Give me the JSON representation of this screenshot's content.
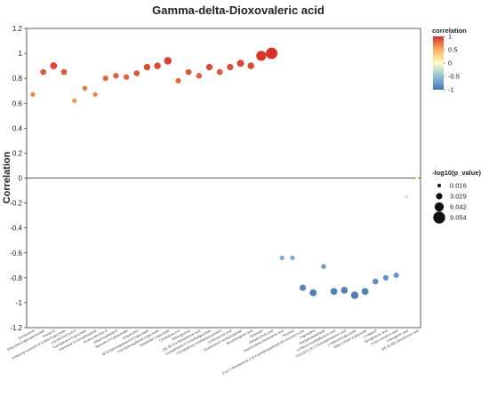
{
  "chart_data": {
    "type": "scatter",
    "title": "Gamma-delta-Dioxovaleric acid",
    "ylabel": "Correlation",
    "xlabel": "",
    "ylim": [
      -1.2,
      1.2
    ],
    "yticks": [
      -1.2,
      -1,
      -0.8,
      -0.6,
      -0.4,
      -0.2,
      0,
      0.2,
      0.4,
      0.6,
      0.8,
      1,
      1.2
    ],
    "grid": false,
    "reference_line_y": 0,
    "color_legend": {
      "title": "correlation",
      "ticks": [
        1,
        0.5,
        0,
        -0.5,
        -1
      ],
      "colors": [
        "#d73027",
        "#fee08b",
        "#fefdbf",
        "#91bfdb",
        "#4575b4"
      ]
    },
    "size_legend": {
      "title": "-log10(p_value)",
      "entries": [
        {
          "label": "0.016",
          "value": 0.016
        },
        {
          "label": "3.029",
          "value": 3.029
        },
        {
          "label": "6.042",
          "value": 6.042
        },
        {
          "label": "9.054",
          "value": 9.054
        }
      ]
    },
    "points": [
      {
        "label": "Sumatrolone",
        "y": 0.67,
        "p": 1.2
      },
      {
        "label": "Ethyl beta-D-glucopyranoside",
        "y": 0.85,
        "p": 2.5
      },
      {
        "label": "Fucose-E",
        "y": 0.9,
        "p": 3.8
      },
      {
        "label": "6-Hydroxy-coumarin 6-O-beta-D-glucoside",
        "y": 0.85,
        "p": 2.6
      },
      {
        "label": "(7S,8S)-DHCA-8-O",
        "y": 0.62,
        "p": 1.0
      },
      {
        "label": "Kaempferol 3-O-glucoside",
        "y": 0.72,
        "p": 1.5
      },
      {
        "label": "Adenosine 3'-monophosphate",
        "y": 0.67,
        "p": 1.2
      },
      {
        "label": "Proteocatechuic-8",
        "y": 0.8,
        "p": 2.1
      },
      {
        "label": "Dihydroxyphenyl-8",
        "y": 0.82,
        "p": 2.3
      },
      {
        "label": "Myricetin 3-O-galactoside",
        "y": 0.81,
        "p": 2.2
      },
      {
        "label": "Isoquercitrin",
        "y": 0.84,
        "p": 2.5
      },
      {
        "label": "6Z-6-Hydroxyguaiacol-8-O-glucoside",
        "y": 0.89,
        "p": 3.2
      },
      {
        "label": "4-(3-Hydroxyphenyl)-2-glucoside",
        "y": 0.9,
        "p": 3.4
      },
      {
        "label": "Delphinidin 3-glucoside",
        "y": 0.94,
        "p": 4.3
      },
      {
        "label": "Cholestane-3-ol",
        "y": 0.78,
        "p": 2.0
      },
      {
        "label": "Phloroglucinol",
        "y": 0.85,
        "p": 2.5
      },
      {
        "label": "(2E,4E)-2,4-Pentadienoic acid",
        "y": 0.82,
        "p": 2.3
      },
      {
        "label": "Lactophloretin 4'-O-methylglucoside",
        "y": 0.89,
        "p": 3.2
      },
      {
        "label": "7,8-Dihydroxy-3-methylisocoumarin",
        "y": 0.85,
        "p": 2.6
      },
      {
        "label": "11-Eicosenoic acid",
        "y": 0.89,
        "p": 3.2
      },
      {
        "label": "Guanosine-5'-monophosphate",
        "y": 0.92,
        "p": 3.8
      },
      {
        "label": "Neochlorogenic acid",
        "y": 0.9,
        "p": 3.4
      },
      {
        "label": "Diosmetin",
        "y": 0.98,
        "p": 7.0
      },
      {
        "label": "Dehydrocholic acid",
        "y": 1.0,
        "p": 8.6
      },
      {
        "label": "Gamma-delta-Dioxovaleric acid",
        "y": -0.64,
        "p": 1.2
      },
      {
        "label": "Hirsutine",
        "y": -0.64,
        "p": 1.2
      },
      {
        "label": "3,4,5,7-Tetrahydroxy-2-(3,4-dimethoxyphenyl)-4H-chromen-4-one",
        "y": -0.88,
        "p": 3.0
      },
      {
        "label": "Trigonelline",
        "y": -0.92,
        "p": 3.8
      },
      {
        "label": "Phenylacetaldehyde",
        "y": -0.71,
        "p": 1.5
      },
      {
        "label": "2-Chloro-4-methylbenzoic acid",
        "y": -0.91,
        "p": 3.6
      },
      {
        "label": "Cis-5,8,11,14,17-Eicosapentaenoic acid",
        "y": -0.9,
        "p": 3.5
      },
      {
        "label": "1-Sulfo-beta-glucoside",
        "y": -0.94,
        "p": 4.3
      },
      {
        "label": "Ethyl 2-(indol-3-yl)acetate",
        "y": -0.91,
        "p": 3.6
      },
      {
        "label": "L-Valine-P",
        "y": -0.83,
        "p": 2.5
      },
      {
        "label": "Pyroglutamic acid",
        "y": -0.8,
        "p": 2.2
      },
      {
        "label": "9-Oxo-nonanoic acid",
        "y": -0.78,
        "p": 2.0
      },
      {
        "label": "Chlorogenic acid",
        "y": -0.15,
        "p": 0.3
      },
      {
        "label": "(2E,4E,6E)-Decatrienoic acid",
        "y": 0.01,
        "p": 0.02
      }
    ]
  }
}
